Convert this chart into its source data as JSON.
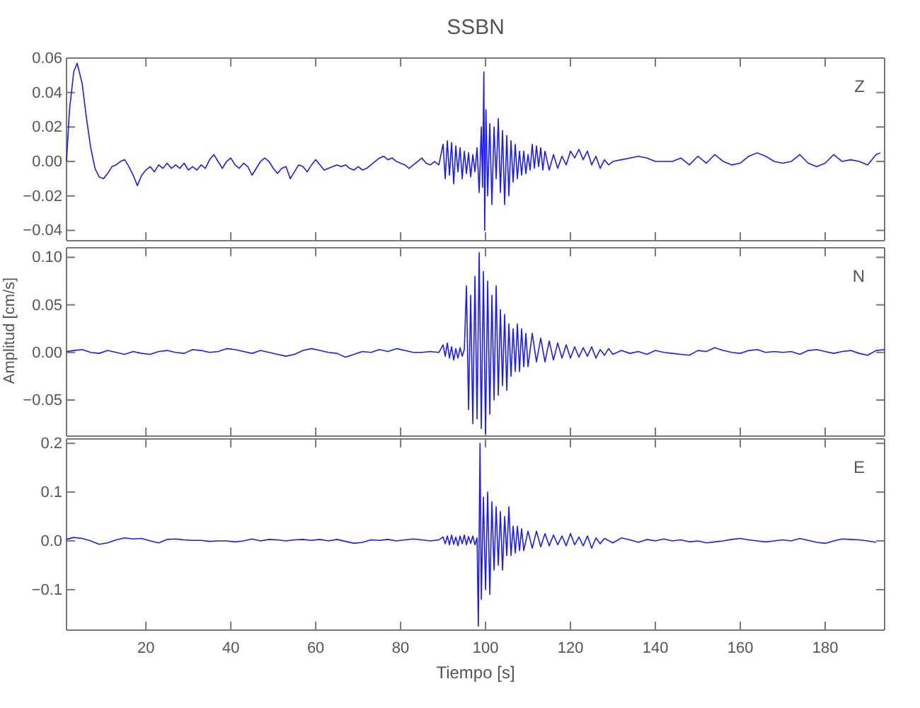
{
  "chart_data": [
    {
      "type": "line",
      "title": "SSBN",
      "annotations": [
        "Z"
      ],
      "tick_labels": "y",
      "xlim": [
        1.3,
        194
      ],
      "xticks": [
        20,
        40,
        60,
        80,
        100,
        120,
        140,
        160,
        180
      ],
      "ylim": [
        -0.046,
        0.06
      ],
      "yticks": [
        {
          "value": -0.04,
          "label": "−0.04"
        },
        {
          "value": -0.02,
          "label": "−0.02"
        },
        {
          "value": 0,
          "label": "0.00"
        },
        {
          "value": 0.02,
          "label": "0.02"
        },
        {
          "value": 0.04,
          "label": "0.04"
        },
        {
          "value": 0.06,
          "label": "0.06"
        }
      ],
      "series": [
        {
          "color": "#1a1aff",
          "x": [
            1.3,
            2,
            3,
            3.8,
            5,
            6,
            7,
            8,
            9,
            10,
            11,
            12,
            13,
            14,
            15,
            16,
            17,
            18,
            19,
            20,
            21,
            22,
            23,
            24,
            25,
            26,
            27,
            28,
            29,
            30,
            31,
            32,
            33,
            34,
            35,
            36,
            37,
            38,
            39,
            40,
            41,
            42,
            43,
            44,
            45,
            46,
            47,
            48,
            49,
            50,
            51,
            52,
            53,
            54,
            55,
            56,
            57,
            58,
            59,
            60,
            61,
            62,
            63,
            64,
            65,
            66,
            67,
            68,
            69,
            70,
            71,
            72,
            73,
            74,
            75,
            76,
            77,
            78,
            79,
            80,
            81,
            82,
            83,
            84,
            85,
            86,
            87,
            88,
            89,
            90,
            90.5,
            91,
            91.5,
            92,
            92.5,
            93,
            93.5,
            94,
            94.5,
            95,
            95.5,
            96,
            96.5,
            97,
            97.5,
            98,
            98.5,
            99,
            99.3,
            99.6,
            99.8,
            100.1,
            100.5,
            101,
            101.5,
            102,
            102.5,
            103,
            103.5,
            104,
            104.5,
            105,
            105.5,
            106,
            106.5,
            107,
            107.5,
            108,
            108.5,
            109,
            109.5,
            110,
            110.5,
            111,
            111.5,
            112,
            112.5,
            113,
            113.5,
            114,
            115,
            116,
            117,
            118,
            119,
            120,
            121,
            122,
            123,
            124,
            125,
            126,
            127,
            128,
            129,
            130,
            132,
            134,
            136,
            138,
            140,
            142,
            144,
            146,
            148,
            150,
            152,
            154,
            156,
            158,
            160,
            162,
            164,
            166,
            168,
            170,
            172,
            174,
            176,
            178,
            180,
            182,
            184,
            186,
            188,
            190,
            192,
            193
          ],
          "values": [
            0.0,
            0.03,
            0.052,
            0.057,
            0.045,
            0.025,
            0.008,
            -0.004,
            -0.009,
            -0.01,
            -0.007,
            -0.003,
            -0.002,
            0.0,
            0.001,
            -0.003,
            -0.008,
            -0.014,
            -0.008,
            -0.005,
            -0.003,
            -0.006,
            -0.002,
            -0.004,
            -0.001,
            -0.004,
            -0.002,
            -0.004,
            -0.001,
            -0.005,
            -0.003,
            -0.005,
            -0.002,
            -0.004,
            0.001,
            0.004,
            0.0,
            -0.004,
            0.0,
            0.002,
            -0.002,
            -0.004,
            -0.001,
            -0.003,
            -0.008,
            -0.004,
            0.0,
            0.002,
            0.0,
            -0.004,
            -0.007,
            -0.004,
            -0.003,
            -0.01,
            -0.006,
            -0.002,
            -0.003,
            -0.006,
            -0.002,
            0.001,
            -0.002,
            -0.005,
            -0.004,
            -0.003,
            -0.002,
            -0.003,
            -0.002,
            -0.004,
            -0.005,
            -0.003,
            -0.005,
            -0.004,
            -0.002,
            0.0,
            0.002,
            0.003,
            0.001,
            0.002,
            0.0,
            -0.001,
            -0.002,
            -0.004,
            -0.002,
            0.0,
            0.002,
            -0.001,
            -0.002,
            0.0,
            -0.002,
            0.01,
            -0.01,
            0.012,
            -0.008,
            0.011,
            -0.013,
            0.009,
            -0.006,
            0.008,
            -0.01,
            0.006,
            -0.007,
            0.005,
            -0.009,
            0.004,
            -0.006,
            0.008,
            -0.018,
            0.02,
            -0.015,
            0.052,
            -0.04,
            0.03,
            -0.02,
            0.022,
            -0.025,
            0.02,
            -0.01,
            0.025,
            -0.018,
            0.018,
            -0.025,
            0.015,
            -0.02,
            0.012,
            -0.012,
            0.01,
            -0.01,
            0.006,
            -0.008,
            0.006,
            -0.007,
            0.004,
            -0.005,
            0.01,
            -0.004,
            0.009,
            -0.003,
            0.008,
            -0.005,
            0.006,
            -0.005,
            0.004,
            -0.004,
            0.003,
            -0.002,
            0.006,
            0.002,
            0.007,
            0.001,
            0.006,
            -0.002,
            0.003,
            -0.004,
            0.001,
            -0.002,
            0.0,
            0.001,
            0.002,
            0.003,
            0.002,
            0.0,
            0.0,
            0.0,
            0.002,
            -0.002,
            0.003,
            -0.001,
            0.004,
            0.0,
            -0.002,
            -0.001,
            0.003,
            0.005,
            0.003,
            0.0,
            -0.001,
            0.0,
            0.004,
            -0.001,
            -0.003,
            -0.001,
            0.004,
            0.0,
            0.001,
            0.0,
            -0.002,
            0.004,
            0.005
          ]
        }
      ]
    },
    {
      "type": "line",
      "ylabel": "Amplitud [cm/s]",
      "annotations": [
        "N"
      ],
      "tick_labels": "y",
      "xlim": [
        1.3,
        194
      ],
      "xticks": [
        20,
        40,
        60,
        80,
        100,
        120,
        140,
        160,
        180
      ],
      "ylim": [
        -0.088,
        0.11
      ],
      "yticks": [
        {
          "value": -0.05,
          "label": "−0.05"
        },
        {
          "value": 0,
          "label": "0.00"
        },
        {
          "value": 0.05,
          "label": "0.05"
        },
        {
          "value": 0.1,
          "label": "0.10"
        }
      ],
      "series": [
        {
          "color": "#1a1aff",
          "x": [
            1.3,
            3,
            5,
            7,
            9,
            11,
            13,
            15,
            17,
            19,
            21,
            23,
            25,
            27,
            29,
            31,
            33,
            35,
            37,
            39,
            41,
            43,
            45,
            47,
            49,
            51,
            53,
            55,
            57,
            59,
            61,
            63,
            65,
            67,
            69,
            71,
            73,
            75,
            77,
            79,
            81,
            83,
            85,
            87,
            89,
            90,
            90.5,
            91,
            91.5,
            92,
            92.5,
            93,
            93.5,
            94,
            94.5,
            95,
            95.5,
            96,
            96.5,
            97,
            97.5,
            98,
            98.5,
            99,
            99.5,
            100,
            100.5,
            101,
            101.5,
            102,
            102.5,
            103,
            103.5,
            104,
            104.5,
            105,
            105.5,
            106,
            106.5,
            107,
            107.5,
            108,
            108.5,
            109,
            109.5,
            110,
            111,
            112,
            113,
            114,
            115,
            116,
            117,
            118,
            119,
            120,
            121,
            122,
            123,
            124,
            125,
            126,
            127,
            128,
            129,
            130,
            132,
            134,
            136,
            138,
            140,
            142,
            144,
            146,
            148,
            150,
            152,
            154,
            156,
            158,
            160,
            162,
            164,
            166,
            168,
            170,
            172,
            174,
            176,
            178,
            180,
            182,
            184,
            186,
            188,
            190,
            192,
            194
          ],
          "values": [
            0.001,
            0.002,
            0.003,
            0.0,
            -0.001,
            0.002,
            0.0,
            -0.002,
            0.001,
            -0.001,
            -0.002,
            0.001,
            0.002,
            0.0,
            -0.001,
            0.003,
            0.002,
            0.0,
            0.001,
            0.004,
            0.003,
            0.001,
            -0.001,
            0.002,
            0.0,
            -0.002,
            -0.004,
            -0.002,
            0.002,
            0.004,
            0.002,
            0.0,
            -0.001,
            -0.005,
            -0.002,
            0.001,
            0.0,
            0.003,
            0.001,
            0.004,
            0.002,
            0.0,
            0.0,
            0.001,
            0.0,
            0.008,
            -0.004,
            0.01,
            -0.006,
            0.006,
            -0.008,
            0.004,
            -0.006,
            0.005,
            -0.004,
            0.003,
            0.07,
            -0.06,
            0.06,
            -0.075,
            0.08,
            -0.07,
            0.105,
            -0.08,
            0.085,
            -0.085,
            0.075,
            -0.065,
            0.06,
            -0.05,
            0.07,
            -0.045,
            0.045,
            -0.035,
            0.04,
            -0.04,
            0.03,
            -0.025,
            0.025,
            -0.02,
            0.03,
            -0.02,
            0.025,
            -0.015,
            0.02,
            -0.015,
            0.02,
            -0.01,
            0.015,
            -0.01,
            0.012,
            -0.008,
            0.01,
            -0.006,
            0.008,
            -0.006,
            0.006,
            -0.005,
            0.005,
            -0.004,
            0.006,
            -0.006,
            0.003,
            -0.003,
            0.004,
            -0.002,
            0.002,
            -0.001,
            0.001,
            -0.002,
            0.002,
            0.0,
            -0.001,
            -0.002,
            -0.003,
            0.002,
            0.001,
            0.005,
            0.002,
            0.0,
            -0.001,
            0.002,
            0.003,
            0.0,
            0.001,
            0.0,
            0.001,
            -0.002,
            0.002,
            0.003,
            0.001,
            -0.001,
            0.001,
            0.002,
            -0.001,
            -0.003,
            0.002,
            0.003
          ]
        }
      ]
    },
    {
      "type": "line",
      "xlabel": "Tiempo [s]",
      "annotations": [
        "E"
      ],
      "xlim": [
        1.3,
        194
      ],
      "xticks": [
        20,
        40,
        60,
        80,
        100,
        120,
        140,
        160,
        180
      ],
      "ylim": [
        -0.183,
        0.209
      ],
      "yticks": [
        {
          "value": -0.1,
          "label": "−0.1"
        },
        {
          "value": 0,
          "label": "0.0"
        },
        {
          "value": 0.1,
          "label": "0.1"
        },
        {
          "value": 0.2,
          "label": "0.2"
        }
      ],
      "series": [
        {
          "color": "#1a1aff",
          "x": [
            1.3,
            3,
            5,
            7,
            9,
            11,
            13,
            15,
            17,
            19,
            21,
            23,
            25,
            27,
            29,
            31,
            33,
            35,
            37,
            39,
            41,
            43,
            45,
            47,
            49,
            51,
            53,
            55,
            57,
            59,
            61,
            63,
            65,
            67,
            69,
            71,
            73,
            75,
            77,
            79,
            81,
            83,
            85,
            87,
            89,
            90,
            90.5,
            91,
            91.5,
            92,
            92.5,
            93,
            93.5,
            94,
            94.5,
            95,
            95.5,
            96,
            96.5,
            97,
            97.5,
            98,
            98.3,
            98.7,
            99,
            99.5,
            100,
            100.5,
            101,
            101.5,
            102,
            102.5,
            103,
            103.5,
            104,
            104.5,
            105,
            105.5,
            106,
            106.5,
            107,
            107.5,
            108,
            108.5,
            109,
            110,
            111,
            112,
            113,
            114,
            115,
            116,
            117,
            118,
            119,
            120,
            121,
            122,
            123,
            124,
            125,
            126,
            127,
            128,
            130,
            132,
            134,
            136,
            138,
            140,
            142,
            144,
            146,
            148,
            150,
            152,
            154,
            156,
            158,
            160,
            162,
            164,
            166,
            168,
            170,
            172,
            174,
            176,
            178,
            180,
            182,
            184,
            186,
            188,
            190,
            192
          ],
          "values": [
            0.003,
            0.007,
            0.005,
            0.0,
            -0.007,
            -0.004,
            0.002,
            0.006,
            0.004,
            0.005,
            0.0,
            -0.004,
            0.003,
            0.004,
            0.002,
            0.001,
            0.001,
            -0.001,
            0.0,
            0.0,
            -0.002,
            0.0,
            0.004,
            0.0,
            0.003,
            0.002,
            0.0,
            0.002,
            0.003,
            0.001,
            0.003,
            0.0,
            0.003,
            -0.001,
            -0.005,
            -0.003,
            0.002,
            0.001,
            0.003,
            0.0,
            0.002,
            0.004,
            0.002,
            0.0,
            0.002,
            0.008,
            -0.006,
            0.01,
            -0.008,
            0.012,
            -0.007,
            0.008,
            -0.01,
            0.01,
            -0.006,
            0.012,
            -0.008,
            0.009,
            -0.005,
            0.01,
            -0.008,
            0.006,
            -0.175,
            0.2,
            -0.12,
            0.09,
            -0.1,
            0.1,
            -0.11,
            0.08,
            -0.06,
            0.07,
            -0.05,
            0.06,
            -0.06,
            0.05,
            -0.03,
            0.07,
            -0.03,
            0.03,
            -0.025,
            0.03,
            -0.02,
            0.025,
            -0.02,
            0.02,
            -0.015,
            0.02,
            -0.012,
            0.015,
            -0.01,
            0.012,
            -0.008,
            0.01,
            -0.01,
            0.015,
            -0.008,
            0.008,
            -0.01,
            0.01,
            -0.015,
            0.006,
            -0.006,
            0.005,
            -0.004,
            0.006,
            0.002,
            -0.003,
            0.003,
            0.0,
            0.004,
            0.0,
            0.002,
            -0.002,
            0.0,
            -0.004,
            -0.002,
            0.0,
            0.003,
            0.005,
            0.002,
            0.0,
            -0.002,
            0.0,
            0.002,
            0.0,
            0.005,
            0.001,
            -0.003,
            -0.005,
            0.0,
            0.004,
            0.003,
            0.002,
            0.0,
            -0.003
          ]
        }
      ]
    }
  ]
}
